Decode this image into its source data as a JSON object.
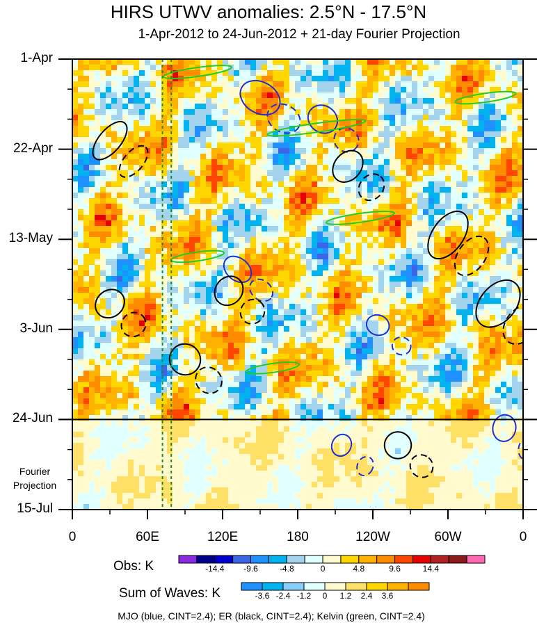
{
  "chart_data": {
    "type": "heatmap",
    "title": "HIRS UTWV anomalies: 2.5°N - 17.5°N",
    "subtitle": "1-Apr-2012 to 24-Jun-2012 + 21-day Fourier Projection",
    "xlabel": "",
    "ylabel": "",
    "x_tick_labels": [
      "0",
      "60E",
      "120E",
      "180",
      "120W",
      "60W",
      "0"
    ],
    "x_tick_values_deg_east": [
      0,
      60,
      120,
      180,
      240,
      300,
      360
    ],
    "y_tick_labels": [
      "1-Apr",
      "22-Apr",
      "13-May",
      "3-Jun",
      "24-Jun",
      "15-Jul"
    ],
    "y_tick_values": [
      "2012-04-01",
      "2012-04-22",
      "2012-05-13",
      "2012-06-03",
      "2012-06-24",
      "2012-07-15"
    ],
    "projection_label": "Fourier Projection",
    "projection_start": "2012-06-24",
    "reference_longitudes_deg_east": [
      72,
      79
    ],
    "obs_colorbar": {
      "title": "Obs: K",
      "levels": [
        -19.2,
        -16.8,
        -14.4,
        -12,
        -9.6,
        -7.2,
        -4.8,
        -2.4,
        0,
        2.4,
        4.8,
        7.2,
        9.6,
        12,
        14.4,
        16.8,
        19.2
      ],
      "tick_labels": [
        "-14.4",
        "-9.6",
        "-4.8",
        "0",
        "4.8",
        "9.6",
        "14.4"
      ],
      "colors": [
        "#8a2be2",
        "#00008b",
        "#0000cd",
        "#3c64e6",
        "#1e90ff",
        "#00b2ee",
        "#a4d3ee",
        "#e0ffff",
        "#fffacd",
        "#ffd700",
        "#ffb300",
        "#ff8c00",
        "#ff4500",
        "#e60000",
        "#b22222",
        "#8b1a1a",
        "#ff69b4"
      ]
    },
    "waves_colorbar": {
      "title": "Sum of Waves: K",
      "levels": [
        -4.8,
        -3.6,
        -2.4,
        -1.2,
        0,
        1.2,
        2.4,
        3.6,
        4.8
      ],
      "tick_labels": [
        "-3.6",
        "-2.4",
        "-1.2",
        "0",
        "1.2",
        "2.4",
        "3.6"
      ],
      "colors": [
        "#1e90ff",
        "#00b2ee",
        "#87cefa",
        "#e0ffff",
        "#fffacd",
        "#ffe066",
        "#ffd700",
        "#ffb300",
        "#ff8c00"
      ]
    },
    "contour_series": [
      {
        "name": "MJO",
        "color": "blue",
        "cint": 2.4
      },
      {
        "name": "ER",
        "color": "black",
        "cint": 2.4
      },
      {
        "name": "Kelvin",
        "color": "green",
        "cint": 2.4
      }
    ],
    "footer": "MJO (blue, CINT=2.4); ER (black, CINT=2.4); Kelvin (green, CINT=2.4)",
    "grid": false
  }
}
